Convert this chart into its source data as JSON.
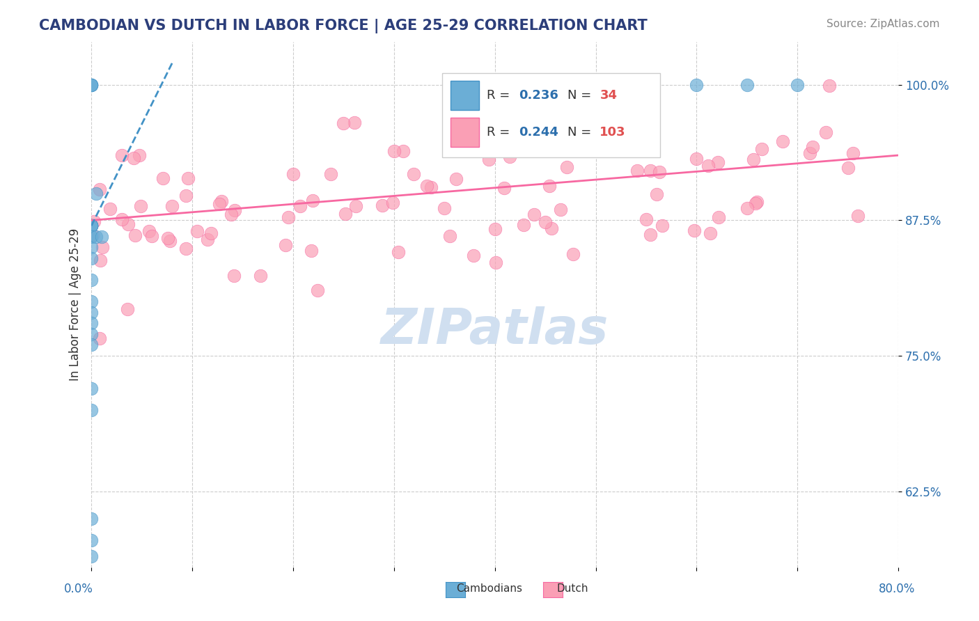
{
  "title": "CAMBODIAN VS DUTCH IN LABOR FORCE | AGE 25-29 CORRELATION CHART",
  "source": "Source: ZipAtlas.com",
  "ylabel": "In Labor Force | Age 25-29",
  "yticks": [
    "62.5%",
    "75.0%",
    "87.5%",
    "100.0%"
  ],
  "ytick_vals": [
    0.625,
    0.75,
    0.875,
    1.0
  ],
  "xmin": 0.0,
  "xmax": 0.8,
  "ymin": 0.555,
  "ymax": 1.04,
  "cambodian_R": 0.236,
  "cambodian_N": 34,
  "dutch_R": 0.244,
  "dutch_N": 103,
  "cambodian_color": "#6baed6",
  "dutch_color": "#fa9fb5",
  "trend_cambodian_color": "#4292c6",
  "trend_dutch_color": "#f768a1",
  "background_color": "#ffffff",
  "title_color": "#2c3e7a",
  "source_color": "#888888",
  "legend_R_color": "#2c6fad",
  "legend_N_color": "#e05050",
  "watermark_color": "#d0dff0",
  "grid_color": "#cccccc"
}
